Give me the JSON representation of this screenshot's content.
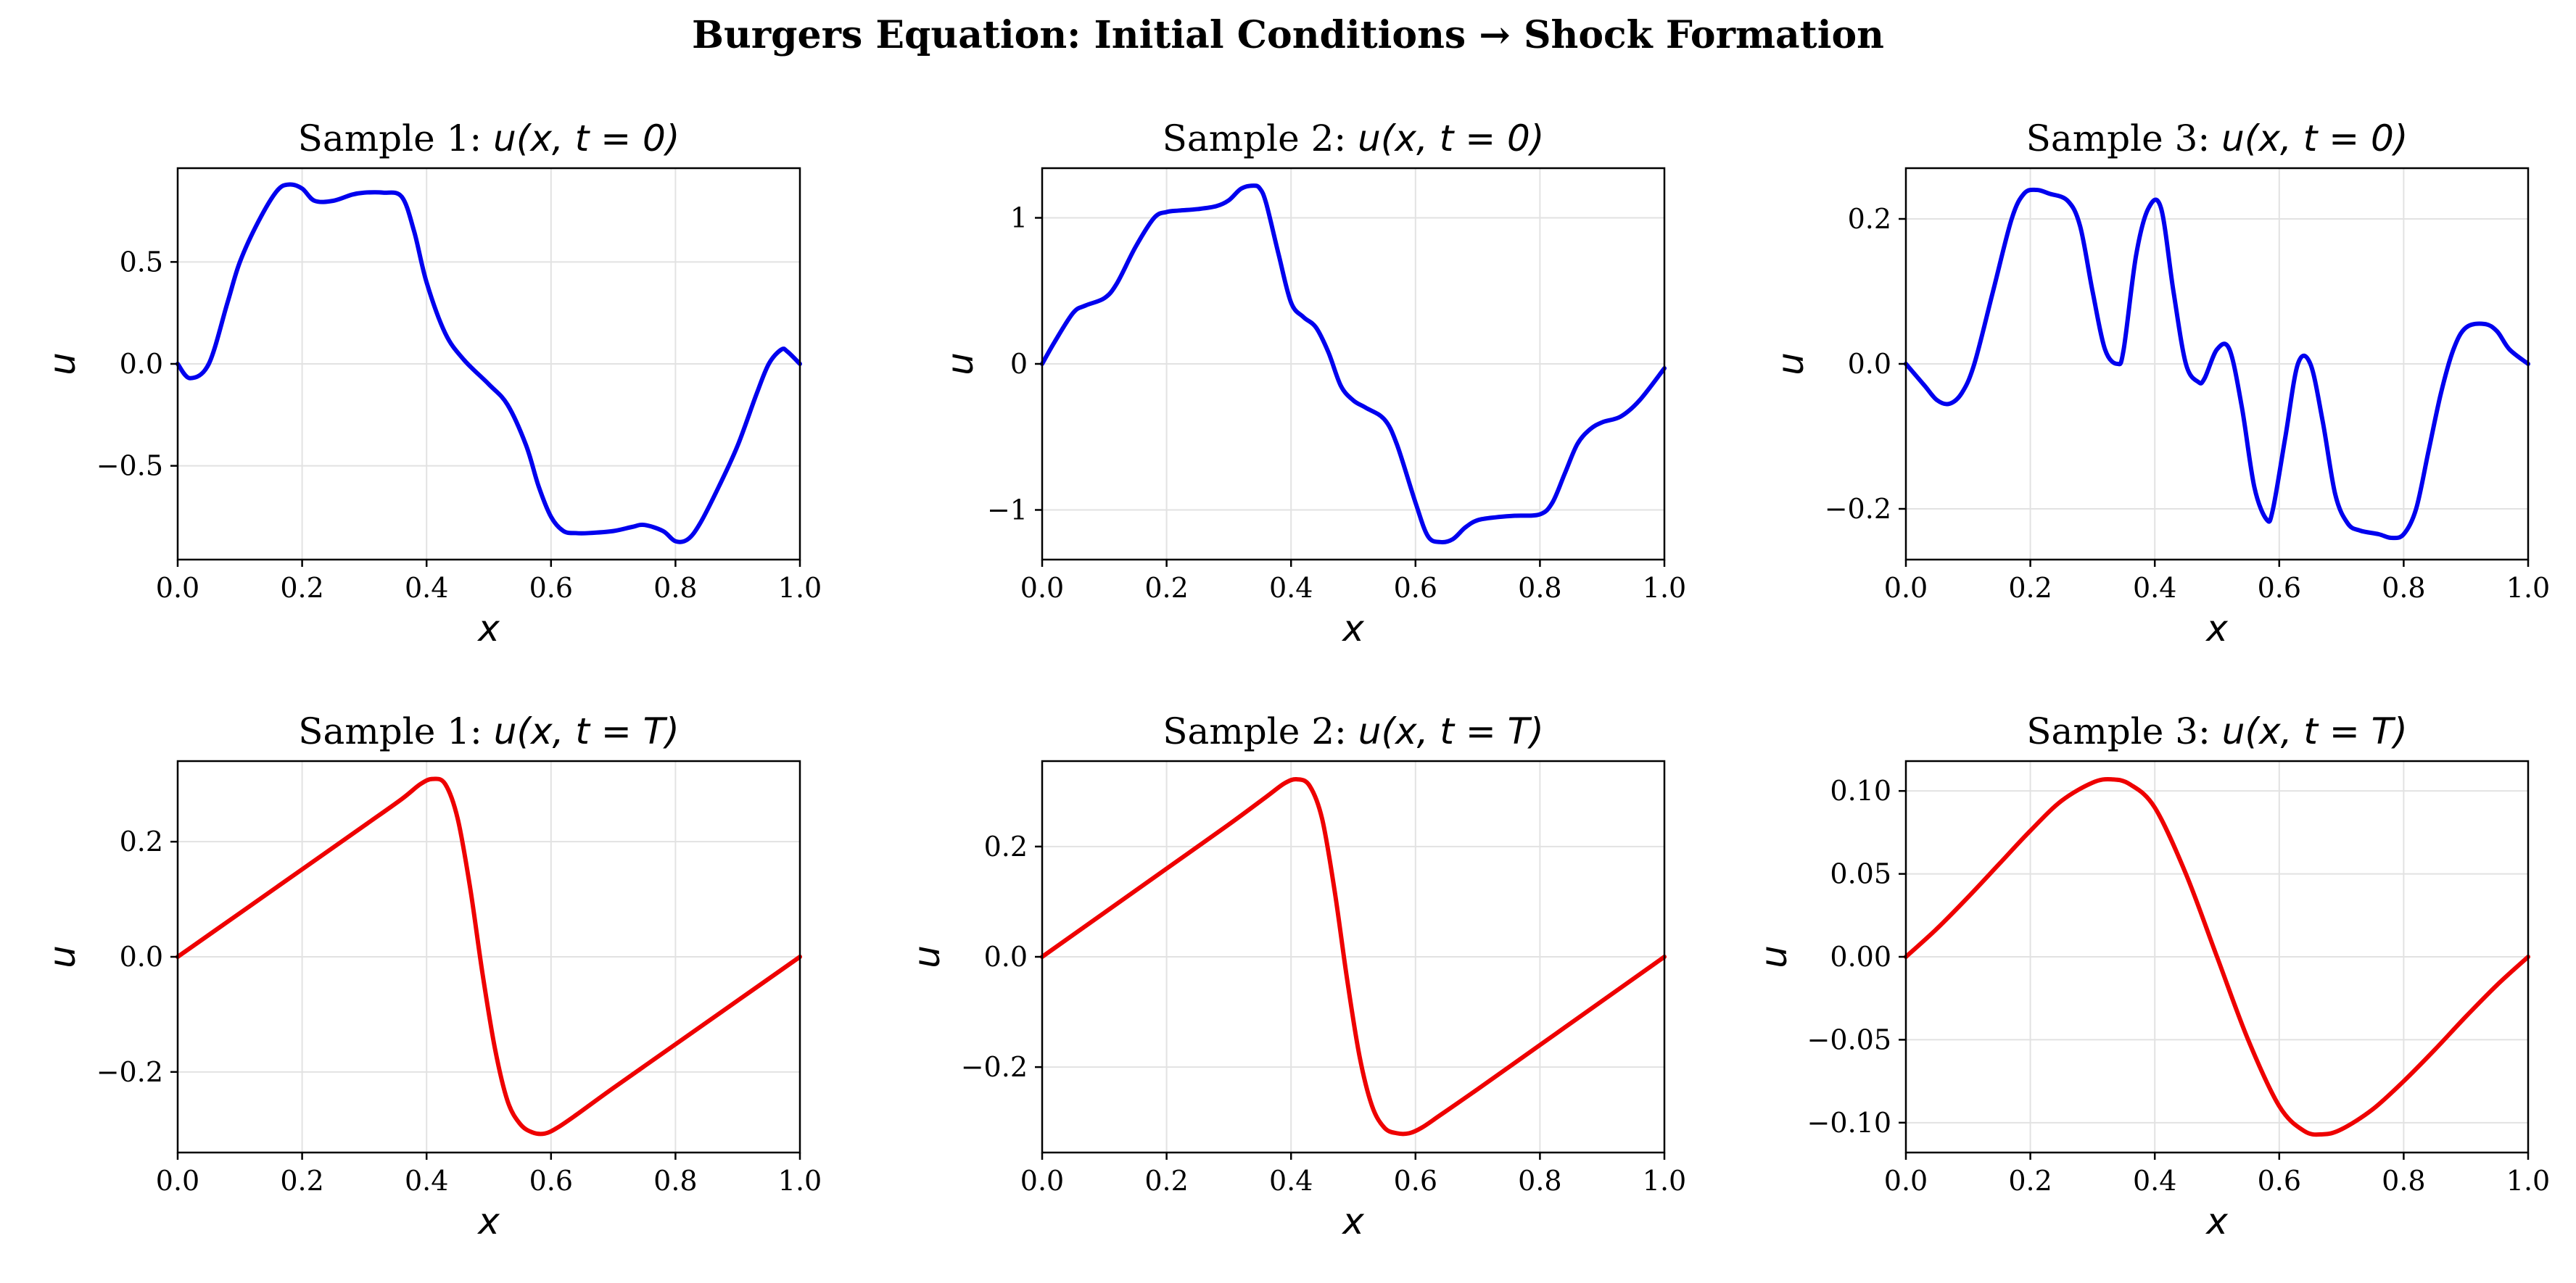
{
  "figure": {
    "title": "Burgers Equation: Initial Conditions → Shock Formation"
  },
  "chart_data": [
    {
      "type": "line",
      "title": "Sample 1: u(x, t = 0)",
      "title_prefix": "Sample 1: ",
      "title_math": "u(x, t = 0)",
      "xlabel": "x",
      "ylabel": "u",
      "xlim": [
        0.0,
        1.0
      ],
      "ylim": [
        -0.96,
        0.96
      ],
      "xticks": [
        0.0,
        0.2,
        0.4,
        0.6,
        0.8,
        1.0
      ],
      "xtick_labels": [
        "0.0",
        "0.2",
        "0.4",
        "0.6",
        "0.8",
        "1.0"
      ],
      "yticks": [
        -0.5,
        0.0,
        0.5
      ],
      "ytick_labels": [
        "−0.5",
        "0.0",
        "0.5"
      ],
      "grid": true,
      "color": "#0000ee",
      "series": [
        {
          "x": [
            0.0,
            0.02,
            0.05,
            0.08,
            0.1,
            0.13,
            0.16,
            0.18,
            0.2,
            0.22,
            0.25,
            0.28,
            0.3,
            0.33,
            0.36,
            0.38,
            0.4,
            0.43,
            0.46,
            0.5,
            0.53,
            0.56,
            0.58,
            0.6,
            0.62,
            0.64,
            0.66,
            0.7,
            0.73,
            0.75,
            0.78,
            0.8,
            0.82,
            0.84,
            0.87,
            0.9,
            0.93,
            0.95,
            0.97,
            0.98,
            1.0
          ],
          "y": [
            0.0,
            -0.07,
            0.0,
            0.3,
            0.5,
            0.7,
            0.85,
            0.88,
            0.86,
            0.8,
            0.8,
            0.83,
            0.84,
            0.84,
            0.82,
            0.65,
            0.4,
            0.15,
            0.02,
            -0.1,
            -0.2,
            -0.4,
            -0.6,
            -0.75,
            -0.82,
            -0.83,
            -0.83,
            -0.82,
            -0.8,
            -0.79,
            -0.82,
            -0.87,
            -0.86,
            -0.78,
            -0.6,
            -0.4,
            -0.15,
            0.0,
            0.07,
            0.06,
            0.0
          ]
        }
      ]
    },
    {
      "type": "line",
      "title": "Sample 2: u(x, t = 0)",
      "title_prefix": "Sample 2: ",
      "title_math": "u(x, t = 0)",
      "xlabel": "x",
      "ylabel": "u",
      "xlim": [
        0.0,
        1.0
      ],
      "ylim": [
        -1.34,
        1.34
      ],
      "xticks": [
        0.0,
        0.2,
        0.4,
        0.6,
        0.8,
        1.0
      ],
      "xtick_labels": [
        "0.0",
        "0.2",
        "0.4",
        "0.6",
        "0.8",
        "1.0"
      ],
      "yticks": [
        -1,
        0,
        1
      ],
      "ytick_labels": [
        "−1",
        "0",
        "1"
      ],
      "grid": true,
      "color": "#0000ee",
      "series": [
        {
          "x": [
            0.0,
            0.02,
            0.05,
            0.07,
            0.1,
            0.12,
            0.15,
            0.18,
            0.2,
            0.22,
            0.25,
            0.28,
            0.3,
            0.32,
            0.34,
            0.35,
            0.36,
            0.38,
            0.4,
            0.42,
            0.44,
            0.46,
            0.48,
            0.5,
            0.52,
            0.55,
            0.57,
            0.6,
            0.62,
            0.64,
            0.66,
            0.68,
            0.7,
            0.73,
            0.76,
            0.8,
            0.82,
            0.84,
            0.86,
            0.88,
            0.9,
            0.93,
            0.96,
            1.0
          ],
          "y": [
            0.0,
            0.15,
            0.35,
            0.4,
            0.45,
            0.55,
            0.8,
            1.0,
            1.04,
            1.05,
            1.06,
            1.08,
            1.12,
            1.2,
            1.22,
            1.2,
            1.1,
            0.75,
            0.42,
            0.32,
            0.25,
            0.08,
            -0.15,
            -0.25,
            -0.3,
            -0.38,
            -0.55,
            -0.95,
            -1.18,
            -1.22,
            -1.2,
            -1.12,
            -1.07,
            -1.05,
            -1.04,
            -1.03,
            -0.95,
            -0.75,
            -0.55,
            -0.45,
            -0.4,
            -0.36,
            -0.25,
            -0.03
          ]
        }
      ]
    },
    {
      "type": "line",
      "title": "Sample 3: u(x, t = 0)",
      "title_prefix": "Sample 3: ",
      "title_math": "u(x, t = 0)",
      "xlabel": "x",
      "ylabel": "u",
      "xlim": [
        0.0,
        1.0
      ],
      "ylim": [
        -0.27,
        0.27
      ],
      "xticks": [
        0.0,
        0.2,
        0.4,
        0.6,
        0.8,
        1.0
      ],
      "xtick_labels": [
        "0.0",
        "0.2",
        "0.4",
        "0.6",
        "0.8",
        "1.0"
      ],
      "yticks": [
        -0.2,
        0.0,
        0.2
      ],
      "ytick_labels": [
        "−0.2",
        "0.0",
        "0.2"
      ],
      "grid": true,
      "color": "#0000ee",
      "series": [
        {
          "x": [
            0.0,
            0.03,
            0.05,
            0.07,
            0.09,
            0.11,
            0.14,
            0.17,
            0.19,
            0.21,
            0.23,
            0.26,
            0.28,
            0.3,
            0.32,
            0.34,
            0.35,
            0.37,
            0.39,
            0.41,
            0.43,
            0.45,
            0.47,
            0.48,
            0.5,
            0.52,
            0.54,
            0.56,
            0.58,
            0.59,
            0.61,
            0.63,
            0.65,
            0.67,
            0.69,
            0.71,
            0.73,
            0.76,
            0.78,
            0.8,
            0.82,
            0.84,
            0.86,
            0.88,
            0.9,
            0.93,
            0.95,
            0.97,
            1.0
          ],
          "y": [
            0.0,
            -0.03,
            -0.05,
            -0.055,
            -0.04,
            0.0,
            0.1,
            0.2,
            0.235,
            0.24,
            0.235,
            0.225,
            0.19,
            0.1,
            0.02,
            0.0,
            0.02,
            0.15,
            0.215,
            0.215,
            0.1,
            0.0,
            -0.025,
            -0.02,
            0.02,
            0.02,
            -0.06,
            -0.17,
            -0.215,
            -0.2,
            -0.1,
            0.0,
            0.0,
            -0.08,
            -0.18,
            -0.22,
            -0.23,
            -0.235,
            -0.24,
            -0.235,
            -0.2,
            -0.12,
            -0.04,
            0.02,
            0.05,
            0.055,
            0.045,
            0.02,
            0.0
          ]
        }
      ]
    },
    {
      "type": "line",
      "title": "Sample 1: u(x, t = T)",
      "title_prefix": "Sample 1: ",
      "title_math": "u(x, t = T)",
      "xlabel": "x",
      "ylabel": "u",
      "xlim": [
        0.0,
        1.0
      ],
      "ylim": [
        -0.34,
        0.34
      ],
      "xticks": [
        0.0,
        0.2,
        0.4,
        0.6,
        0.8,
        1.0
      ],
      "xtick_labels": [
        "0.0",
        "0.2",
        "0.4",
        "0.6",
        "0.8",
        "1.0"
      ],
      "yticks": [
        -0.2,
        0.0,
        0.2
      ],
      "ytick_labels": [
        "−0.2",
        "0.0",
        "0.2"
      ],
      "grid": true,
      "color": "#ee0000",
      "series": [
        {
          "x": [
            0.0,
            0.1,
            0.2,
            0.3,
            0.36,
            0.39,
            0.41,
            0.43,
            0.45,
            0.47,
            0.49,
            0.51,
            0.53,
            0.55,
            0.57,
            0.59,
            0.61,
            0.64,
            0.7,
            0.8,
            0.9,
            1.0
          ],
          "y": [
            0.0,
            0.076,
            0.152,
            0.228,
            0.274,
            0.3,
            0.309,
            0.3,
            0.24,
            0.12,
            -0.03,
            -0.16,
            -0.25,
            -0.29,
            -0.305,
            -0.307,
            -0.297,
            -0.275,
            -0.228,
            -0.152,
            -0.076,
            0.0
          ]
        }
      ]
    },
    {
      "type": "line",
      "title": "Sample 2: u(x, t = T)",
      "title_prefix": "Sample 2: ",
      "title_math": "u(x, t = T)",
      "xlabel": "x",
      "ylabel": "u",
      "xlim": [
        0.0,
        1.0
      ],
      "ylim": [
        -0.355,
        0.355
      ],
      "xticks": [
        0.0,
        0.2,
        0.4,
        0.6,
        0.8,
        1.0
      ],
      "xtick_labels": [
        "0.0",
        "0.2",
        "0.4",
        "0.6",
        "0.8",
        "1.0"
      ],
      "yticks": [
        -0.2,
        0.0,
        0.2
      ],
      "ytick_labels": [
        "−0.2",
        "0.0",
        "0.2"
      ],
      "grid": true,
      "color": "#ee0000",
      "series": [
        {
          "x": [
            0.0,
            0.1,
            0.2,
            0.3,
            0.36,
            0.39,
            0.41,
            0.43,
            0.45,
            0.47,
            0.49,
            0.51,
            0.53,
            0.55,
            0.57,
            0.59,
            0.61,
            0.64,
            0.7,
            0.8,
            0.9,
            1.0
          ],
          "y": [
            0.0,
            0.08,
            0.16,
            0.24,
            0.29,
            0.315,
            0.322,
            0.31,
            0.25,
            0.12,
            -0.04,
            -0.18,
            -0.27,
            -0.31,
            -0.32,
            -0.32,
            -0.31,
            -0.287,
            -0.24,
            -0.16,
            -0.08,
            0.0
          ]
        }
      ]
    },
    {
      "type": "line",
      "title": "Sample 3: u(x, t = T)",
      "title_prefix": "Sample 3: ",
      "title_math": "u(x, t = T)",
      "xlabel": "x",
      "ylabel": "u",
      "xlim": [
        0.0,
        1.0
      ],
      "ylim": [
        -0.118,
        0.118
      ],
      "xticks": [
        0.0,
        0.2,
        0.4,
        0.6,
        0.8,
        1.0
      ],
      "xtick_labels": [
        "0.0",
        "0.2",
        "0.4",
        "0.6",
        "0.8",
        "1.0"
      ],
      "yticks": [
        -0.1,
        -0.05,
        0.0,
        0.05,
        0.1
      ],
      "ytick_labels": [
        "−0.10",
        "−0.05",
        "0.00",
        "0.05",
        "0.10"
      ],
      "grid": true,
      "color": "#ee0000",
      "series": [
        {
          "x": [
            0.0,
            0.05,
            0.1,
            0.15,
            0.2,
            0.25,
            0.3,
            0.33,
            0.36,
            0.4,
            0.45,
            0.5,
            0.55,
            0.6,
            0.64,
            0.67,
            0.7,
            0.75,
            0.8,
            0.85,
            0.9,
            0.95,
            1.0
          ],
          "y": [
            0.0,
            0.017,
            0.036,
            0.056,
            0.076,
            0.094,
            0.105,
            0.107,
            0.104,
            0.09,
            0.05,
            0.0,
            -0.05,
            -0.09,
            -0.105,
            -0.107,
            -0.104,
            -0.092,
            -0.075,
            -0.056,
            -0.036,
            -0.017,
            0.0
          ]
        }
      ]
    }
  ]
}
